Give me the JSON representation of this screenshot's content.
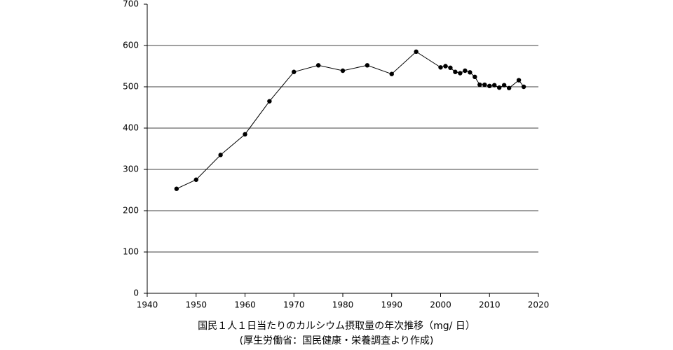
{
  "chart_data": {
    "type": "line",
    "title": "国民１人１日当たりのカルシウム摂取量の年次推移（mg/ 日）",
    "subtitle": "(厚生労働省：国民健康・栄養調査より作成)",
    "x": [
      1946,
      1950,
      1955,
      1960,
      1965,
      1970,
      1975,
      1980,
      1985,
      1990,
      1995,
      2000,
      2001,
      2002,
      2003,
      2004,
      2005,
      2006,
      2007,
      2008,
      2009,
      2010,
      2011,
      2012,
      2013,
      2014,
      2016,
      2017
    ],
    "values": [
      253,
      275,
      335,
      385,
      465,
      536,
      552,
      539,
      552,
      531,
      585,
      547,
      550,
      546,
      536,
      533,
      539,
      535,
      524,
      505,
      505,
      502,
      504,
      498,
      504,
      497,
      516,
      500
    ],
    "color": "#000000",
    "xlim": [
      1940,
      2020
    ],
    "xticks": [
      1940,
      1950,
      1960,
      1970,
      1980,
      1990,
      2000,
      2010,
      2020
    ],
    "ylim": [
      0,
      700
    ],
    "yticks": [
      0,
      100,
      200,
      300,
      400,
      500,
      600,
      700
    ],
    "grid": true
  }
}
